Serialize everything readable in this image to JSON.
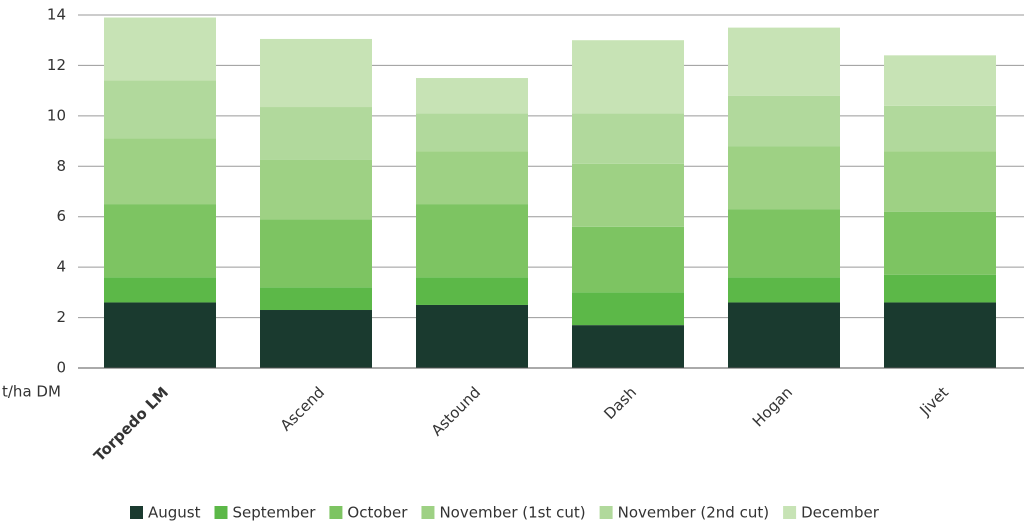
{
  "chart_data": {
    "type": "stacked_bar",
    "y_label": "t/ha DM",
    "categories": [
      "Torpedo LM",
      "Ascend",
      "Astound",
      "Dash",
      "Hogan",
      "Jivet"
    ],
    "series": [
      {
        "name": "August",
        "color": "#1a3a2f",
        "values": [
          2.6,
          2.3,
          2.5,
          1.7,
          2.6,
          2.6
        ]
      },
      {
        "name": "September",
        "color": "#5cb848",
        "values": [
          1.0,
          0.9,
          1.1,
          1.3,
          1.0,
          1.1
        ]
      },
      {
        "name": "October",
        "color": "#7dc462",
        "values": [
          2.9,
          2.7,
          2.9,
          2.6,
          2.7,
          2.5
        ]
      },
      {
        "name": "November (1st cut)",
        "color": "#9ed184",
        "values": [
          2.6,
          2.35,
          2.1,
          2.5,
          2.5,
          2.4
        ]
      },
      {
        "name": "November (2nd cut)",
        "color": "#b1d99c",
        "values": [
          2.3,
          2.1,
          1.5,
          2.0,
          2.0,
          1.8
        ]
      },
      {
        "name": "December",
        "color": "#c7e3b5",
        "values": [
          2.5,
          2.7,
          1.4,
          2.9,
          2.7,
          2.0
        ]
      }
    ],
    "ylim": [
      0,
      14
    ],
    "yticks": [
      0,
      2,
      4,
      6,
      8,
      10,
      12,
      14
    ],
    "grid": true
  }
}
